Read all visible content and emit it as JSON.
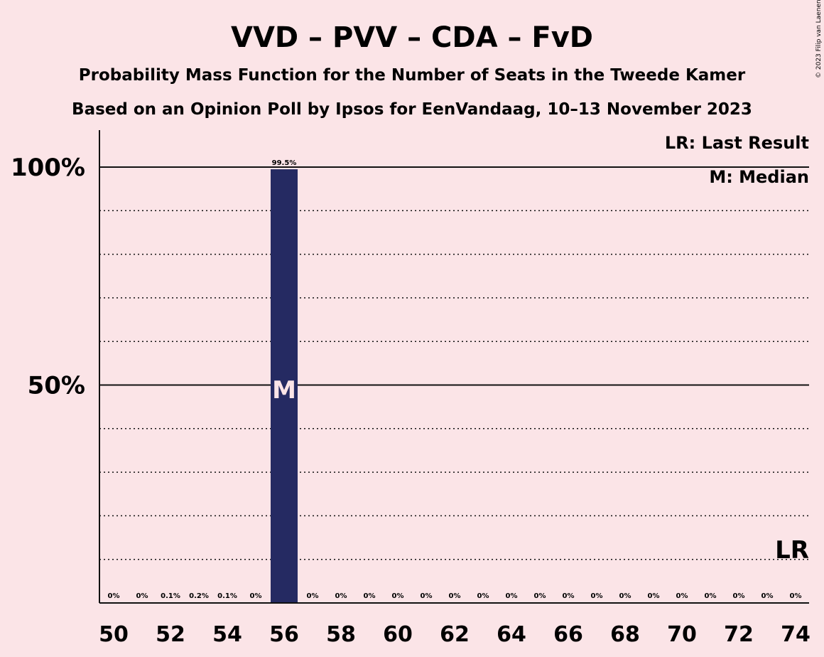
{
  "chart_data": {
    "type": "bar",
    "title": "VVD – PVV – CDA – FvD",
    "subtitle": "Probability Mass Function for the Number of Seats in the Tweede Kamer",
    "subtitle2": "Based on an Opinion Poll by Ipsos for EenVandaag, 10–13 November 2023",
    "xlabel": "",
    "ylabel": "",
    "x": [
      50,
      51,
      52,
      53,
      54,
      55,
      56,
      57,
      58,
      59,
      60,
      61,
      62,
      63,
      64,
      65,
      66,
      67,
      68,
      69,
      70,
      71,
      72,
      73,
      74
    ],
    "values": [
      0,
      0,
      0.1,
      0.2,
      0.1,
      0,
      99.5,
      0,
      0,
      0,
      0,
      0,
      0,
      0,
      0,
      0,
      0,
      0,
      0,
      0,
      0,
      0,
      0,
      0,
      0
    ],
    "value_labels": [
      "0%",
      "0%",
      "0.1%",
      "0.2%",
      "0.1%",
      "0%",
      "99.5%",
      "0%",
      "0%",
      "0%",
      "0%",
      "0%",
      "0%",
      "0%",
      "0%",
      "0%",
      "0%",
      "0%",
      "0%",
      "0%",
      "0%",
      "0%",
      "0%",
      "0%",
      "0%"
    ],
    "x_tick_labels": [
      "50",
      "52",
      "54",
      "56",
      "58",
      "60",
      "62",
      "64",
      "66",
      "68",
      "70",
      "72",
      "74"
    ],
    "x_tick_values": [
      50,
      52,
      54,
      56,
      58,
      60,
      62,
      64,
      66,
      68,
      70,
      72,
      74
    ],
    "y_tick_labels": [
      "50%",
      "100%"
    ],
    "y_tick_values": [
      50,
      100
    ],
    "ylim": [
      0,
      100
    ],
    "grid": "dotted every 10%",
    "bar_color": "#252a62",
    "median_seat": 56,
    "median_marker": "M",
    "last_result_marker": "LR",
    "legend": {
      "position": "top-right",
      "lr": "LR: Last Result",
      "m": "M: Median"
    },
    "copyright": "© 2023 Filip van Laenen"
  }
}
